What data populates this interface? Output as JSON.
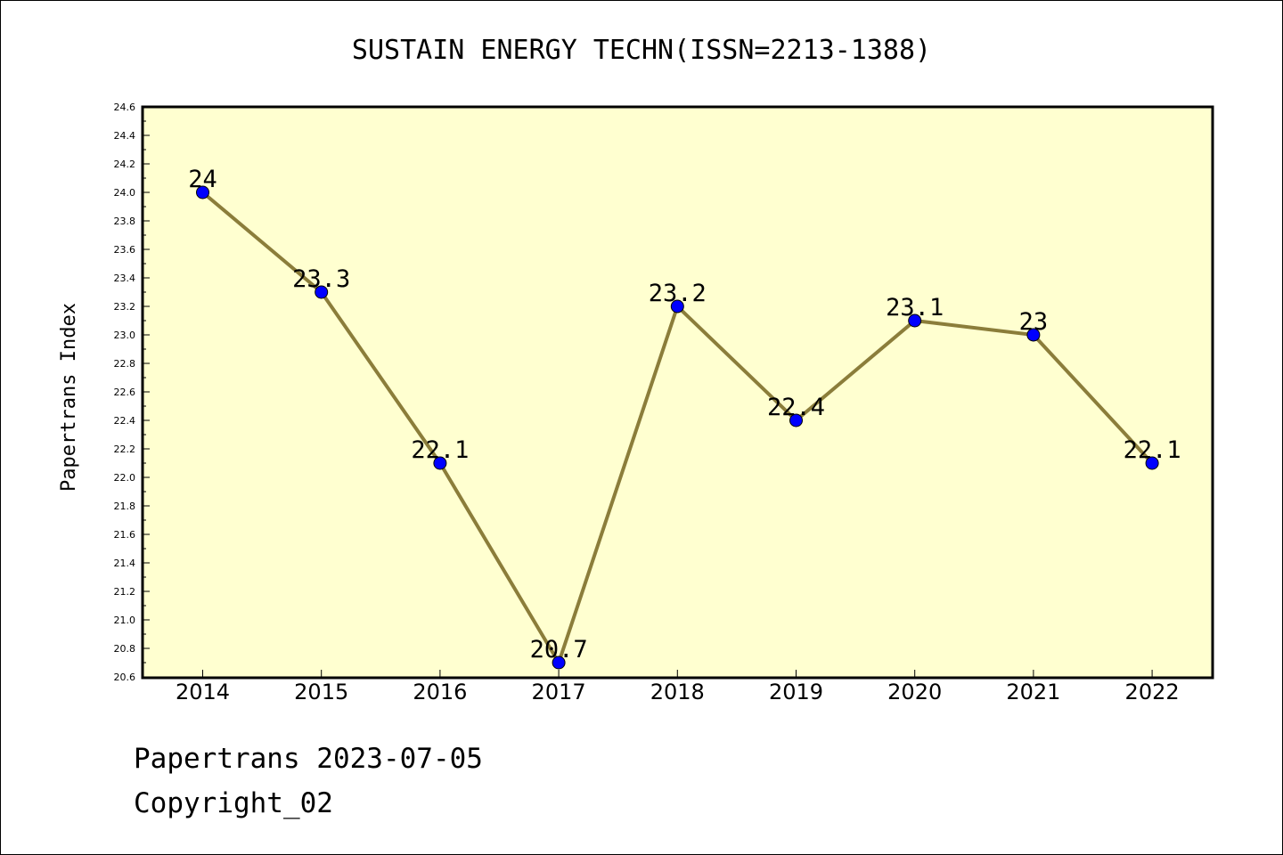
{
  "chart_data": {
    "type": "line",
    "title": "SUSTAIN ENERGY TECHN(ISSN=2213-1388)",
    "xlabel": "",
    "ylabel": "Papertrans Index",
    "categories": [
      "2014",
      "2015",
      "2016",
      "2017",
      "2018",
      "2019",
      "2020",
      "2021",
      "2022"
    ],
    "series": [
      {
        "values": [
          24,
          23.3,
          22.1,
          20.7,
          23.2,
          22.4,
          23.1,
          23,
          22.1
        ],
        "data_labels": [
          "24",
          "23.3",
          "22.1",
          "20.7",
          "23.2",
          "22.4",
          "23.1",
          "23",
          "22.1"
        ]
      }
    ],
    "ylim": [
      20.6,
      24.6
    ],
    "yticks": [
      "20.6",
      "20.8",
      "21.0",
      "21.2",
      "21.4",
      "21.6",
      "21.8",
      "22.0",
      "22.2",
      "22.4",
      "22.6",
      "22.8",
      "23.0",
      "23.2",
      "23.4",
      "23.6",
      "23.8",
      "24.0",
      "24.2",
      "24.4",
      "24.6"
    ],
    "grid": false,
    "colors": {
      "plot_background": "#ffffd0",
      "line": "#8b7d3a",
      "marker": "#0000ff"
    }
  },
  "footer": {
    "line1": "Papertrans 2023-07-05",
    "line2": "Copyright_02"
  }
}
